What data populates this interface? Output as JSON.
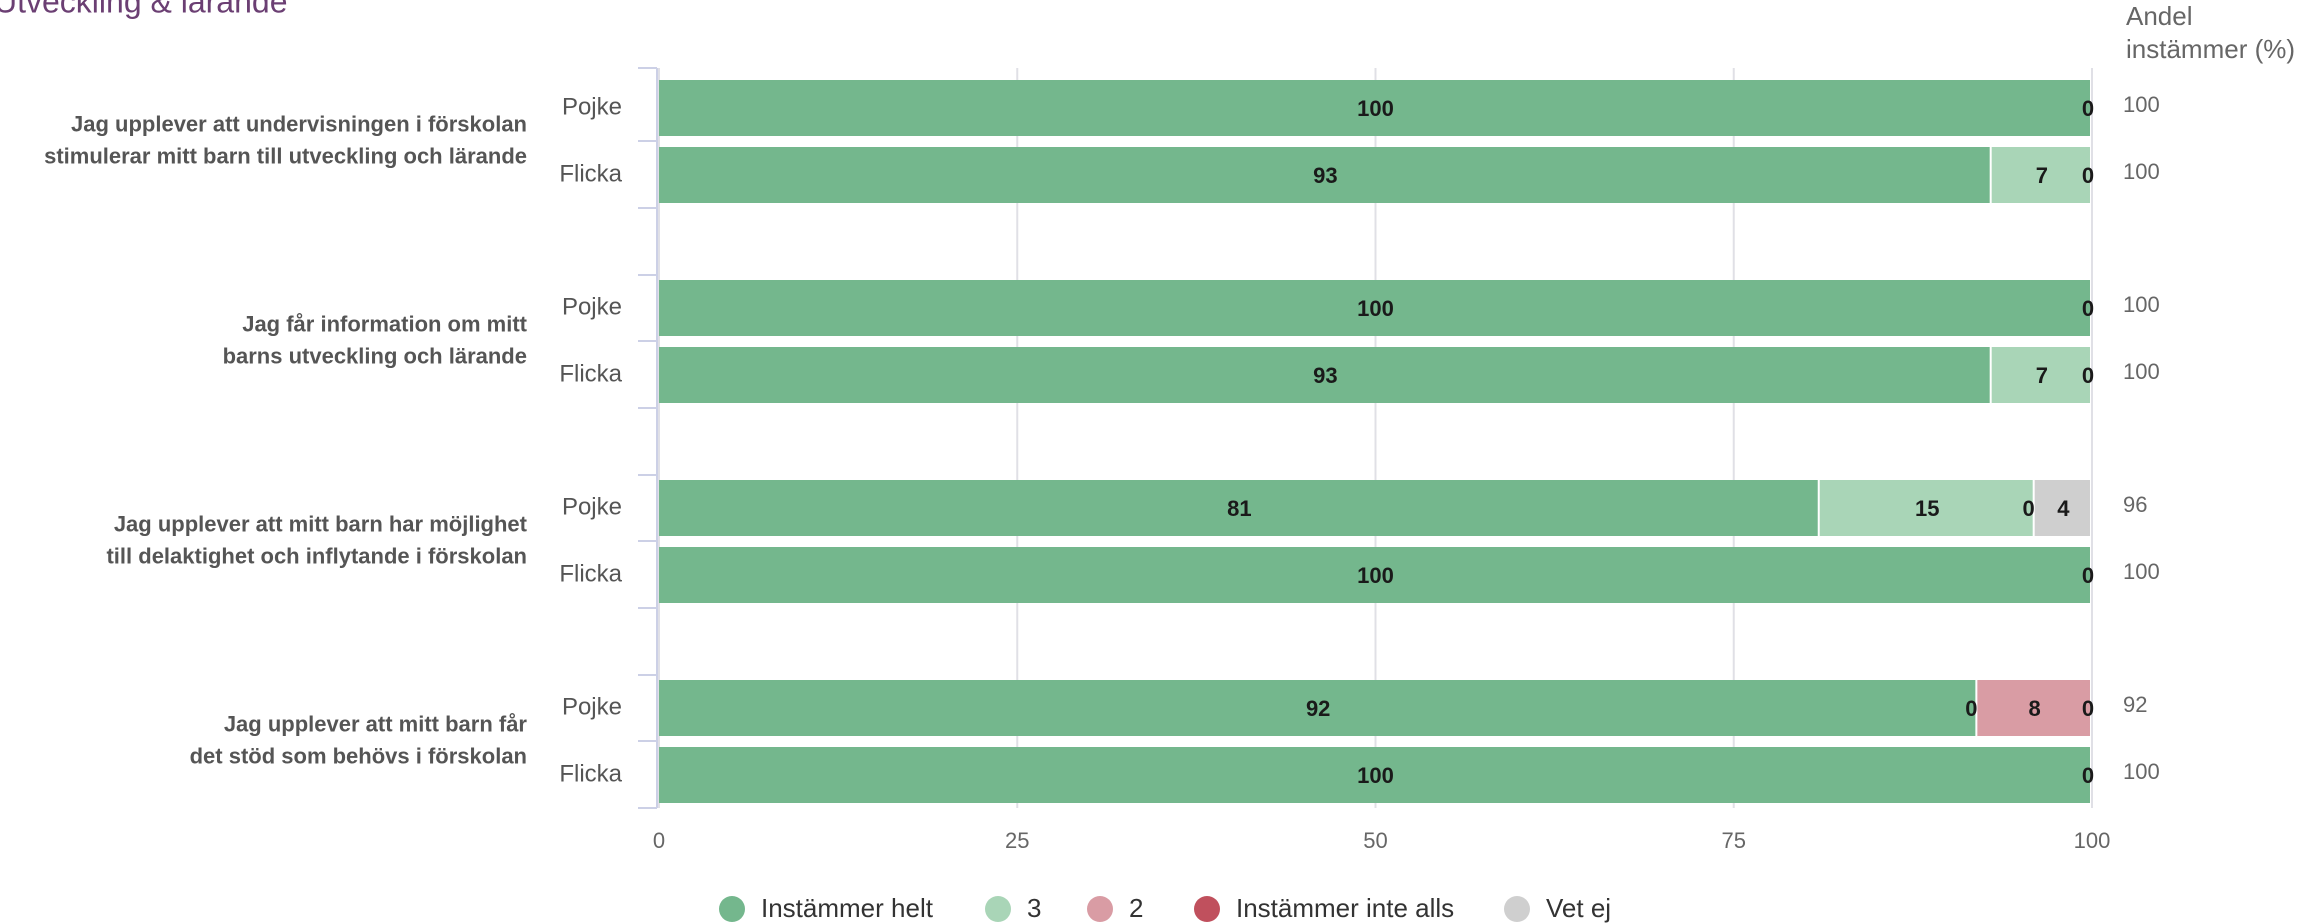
{
  "chart_data": {
    "type": "bar",
    "orientation": "horizontal",
    "stacked": true,
    "title": "Utveckling & lärande",
    "right_column_title": "Andel instämmer (%)",
    "xlim": [
      0,
      100
    ],
    "x_ticks": [
      0,
      25,
      50,
      75,
      100
    ],
    "grid": true,
    "legend_position": "bottom",
    "series": [
      {
        "name": "Instämmer helt",
        "color": "#74b78d"
      },
      {
        "name": "3",
        "color": "#a9d5b7"
      },
      {
        "name": "2",
        "color": "#d99ca4"
      },
      {
        "name": "Instämmer inte alls",
        "color": "#c0505d"
      },
      {
        "name": "Vet ej",
        "color": "#cfcfcf"
      }
    ],
    "questions": [
      {
        "label_lines": [
          "Jag upplever att undervisningen i förskolan",
          "stimulerar mitt barn till utveckling och lärande"
        ],
        "rows": [
          {
            "group": "Pojke",
            "values": [
              100,
              0,
              0,
              0,
              0
            ],
            "labels": [
              "100",
              "",
              "",
              "",
              "0"
            ],
            "agree_pct": "100"
          },
          {
            "group": "Flicka",
            "values": [
              93,
              7,
              0,
              0,
              0
            ],
            "labels": [
              "93",
              "7",
              "",
              "",
              "0"
            ],
            "agree_pct": "100"
          }
        ]
      },
      {
        "label_lines": [
          "Jag får information om mitt",
          "barns utveckling och lärande"
        ],
        "rows": [
          {
            "group": "Pojke",
            "values": [
              100,
              0,
              0,
              0,
              0
            ],
            "labels": [
              "100",
              "",
              "",
              "",
              "0"
            ],
            "agree_pct": "100"
          },
          {
            "group": "Flicka",
            "values": [
              93,
              7,
              0,
              0,
              0
            ],
            "labels": [
              "93",
              "7",
              "",
              "",
              "0"
            ],
            "agree_pct": "100"
          }
        ]
      },
      {
        "label_lines": [
          "Jag upplever att mitt barn har möjlighet",
          "till delaktighet och inflytande i förskolan"
        ],
        "rows": [
          {
            "group": "Pojke",
            "values": [
              81,
              15,
              0,
              0,
              4
            ],
            "labels": [
              "81",
              "15",
              "0",
              "",
              "4"
            ],
            "agree_pct": "96"
          },
          {
            "group": "Flicka",
            "values": [
              100,
              0,
              0,
              0,
              0
            ],
            "labels": [
              "100",
              "",
              "",
              "",
              "0"
            ],
            "agree_pct": "100"
          }
        ]
      },
      {
        "label_lines": [
          "Jag upplever att mitt barn får",
          "det stöd som behövs i förskolan"
        ],
        "rows": [
          {
            "group": "Pojke",
            "values": [
              92,
              0,
              8,
              0,
              0
            ],
            "labels": [
              "92",
              "0",
              "8",
              "",
              "0"
            ],
            "agree_pct": "92"
          },
          {
            "group": "Flicka",
            "values": [
              100,
              0,
              0,
              0,
              0
            ],
            "labels": [
              "100",
              "",
              "",
              "",
              "0"
            ],
            "agree_pct": "100"
          }
        ]
      }
    ]
  }
}
